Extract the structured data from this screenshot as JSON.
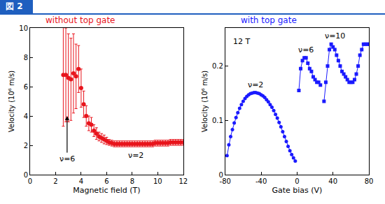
{
  "figure_label": "図 2",
  "chart_data": [
    {
      "type": "scatter",
      "title": "without top gate",
      "color": "#e8141c",
      "x_label": "Magnetic field (T)",
      "y_label": "Velocity (10⁶ m/s)",
      "xlim": [
        0,
        12
      ],
      "xticks": [
        0,
        2,
        4,
        6,
        8,
        10,
        12
      ],
      "ylim": [
        0,
        10
      ],
      "yticks": [
        0,
        2,
        4,
        6,
        8,
        10
      ],
      "grid": false,
      "marker": "circle",
      "series": [
        {
          "x": [
            2.6,
            2.8,
            3.0,
            3.2,
            3.4,
            3.6,
            3.8,
            4.0,
            4.2,
            4.4,
            4.6,
            4.8,
            5.0,
            5.2,
            5.4,
            5.6,
            5.8,
            6.0,
            6.2,
            6.4,
            6.6,
            6.8,
            7.0,
            7.2,
            7.4,
            7.6,
            7.8,
            8.0,
            8.2,
            8.4,
            8.6,
            8.8,
            9.0,
            9.2,
            9.4,
            9.6,
            9.8,
            10.0,
            10.2,
            10.4,
            10.6,
            10.8,
            11.0,
            11.2,
            11.4,
            11.6,
            11.8,
            12.0
          ],
          "values": [
            6.8,
            6.8,
            6.6,
            6.5,
            6.9,
            6.7,
            7.2,
            5.9,
            4.8,
            4.0,
            3.5,
            3.4,
            3.0,
            2.8,
            2.6,
            2.5,
            2.4,
            2.3,
            2.2,
            2.15,
            2.1,
            2.1,
            2.1,
            2.1,
            2.1,
            2.1,
            2.1,
            2.1,
            2.1,
            2.1,
            2.1,
            2.1,
            2.1,
            2.1,
            2.1,
            2.1,
            2.15,
            2.15,
            2.15,
            2.15,
            2.15,
            2.15,
            2.2,
            2.2,
            2.2,
            2.2,
            2.2,
            2.2
          ],
          "errors": [
            3.5,
            3.2,
            3.0,
            2.8,
            2.7,
            2.2,
            1.6,
            1.3,
            0.9,
            0.7,
            0.5,
            0.5,
            0.4,
            0.4,
            0.3,
            0.3,
            0.3,
            0.25,
            0.2,
            0.2,
            0.2,
            0.2,
            0.2,
            0.2,
            0.2,
            0.2,
            0.2,
            0.2,
            0.2,
            0.2,
            0.2,
            0.2,
            0.2,
            0.2,
            0.2,
            0.2,
            0.2,
            0.2,
            0.2,
            0.2,
            0.2,
            0.2,
            0.2,
            0.2,
            0.2,
            0.2,
            0.2,
            0.2
          ]
        }
      ],
      "annotations": [
        {
          "text": "ν=6",
          "x": 2.9,
          "y": 1.5,
          "arrow_to": {
            "x": 2.9,
            "y": 4.0
          }
        },
        {
          "text": "ν=2",
          "x": 8.3,
          "y": 1.3
        }
      ]
    },
    {
      "type": "line",
      "title": "with top gate",
      "color": "#1a1aff",
      "x_label": "Gate bias (V)",
      "y_label": "Velocity (10⁶ m/s)",
      "xlim": [
        -80,
        80
      ],
      "xticks": [
        -80,
        -40,
        0,
        40,
        80
      ],
      "ylim": [
        0,
        0.27
      ],
      "yticks": [
        0,
        0.1,
        0.2
      ],
      "grid": false,
      "series": [
        {
          "marker": "circle",
          "x": [
            -78,
            -76,
            -74,
            -72,
            -70,
            -68,
            -66,
            -64,
            -62,
            -60,
            -58,
            -56,
            -54,
            -52,
            -50,
            -48,
            -46,
            -44,
            -42,
            -40,
            -38,
            -36,
            -34,
            -32,
            -30,
            -28,
            -26,
            -24,
            -22,
            -20,
            -18,
            -16,
            -14,
            -12,
            -10,
            -8,
            -6,
            -4,
            -2
          ],
          "values": [
            0.035,
            0.055,
            0.07,
            0.083,
            0.095,
            0.105,
            0.114,
            0.122,
            0.129,
            0.135,
            0.14,
            0.144,
            0.147,
            0.149,
            0.15,
            0.151,
            0.151,
            0.15,
            0.149,
            0.147,
            0.145,
            0.142,
            0.138,
            0.134,
            0.129,
            0.124,
            0.118,
            0.111,
            0.104,
            0.096,
            0.088,
            0.079,
            0.07,
            0.061,
            0.052,
            0.044,
            0.037,
            0.031,
            0.025
          ]
        },
        {
          "marker": "square",
          "x": [
            2,
            4,
            6,
            8,
            10,
            12,
            14,
            16,
            18,
            20,
            22,
            24,
            26
          ],
          "values": [
            0.155,
            0.195,
            0.21,
            0.215,
            0.215,
            0.205,
            0.195,
            0.19,
            0.18,
            0.175,
            0.17,
            0.17,
            0.165
          ]
        },
        {
          "marker": "square",
          "x": [
            30,
            32,
            34,
            36,
            38,
            40,
            42,
            44,
            46,
            48,
            50,
            52,
            54,
            56,
            58,
            60,
            62,
            64,
            66,
            68,
            70,
            72,
            74,
            76,
            78,
            80
          ],
          "values": [
            0.135,
            0.17,
            0.2,
            0.23,
            0.24,
            0.235,
            0.23,
            0.22,
            0.21,
            0.2,
            0.19,
            0.185,
            0.18,
            0.175,
            0.17,
            0.17,
            0.17,
            0.175,
            0.185,
            0.2,
            0.22,
            0.23,
            0.24,
            0.24,
            0.24,
            0.24
          ]
        }
      ],
      "annotations": [
        {
          "text": "12 T",
          "x": -62,
          "y": 0.245
        },
        {
          "text": "ν=2",
          "x": -46,
          "y": 0.165
        },
        {
          "text": "ν=6",
          "x": 10,
          "y": 0.23
        },
        {
          "text": "ν=10",
          "x": 42,
          "y": 0.255
        }
      ]
    }
  ]
}
